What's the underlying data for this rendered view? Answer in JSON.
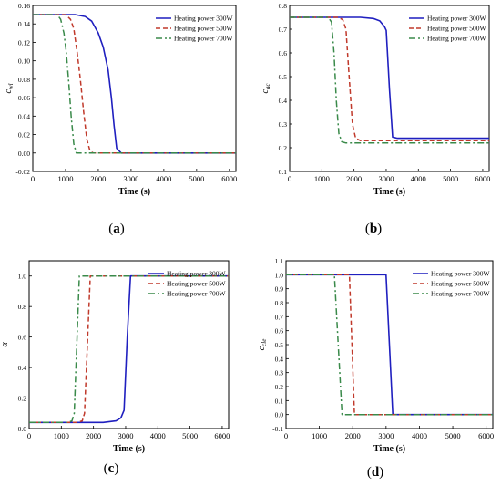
{
  "chart_data": [
    {
      "panel": "(a)",
      "type": "line",
      "xlabel": "Time (s)",
      "ylabel": "c",
      "ylabel_sub": "wl",
      "xlim": [
        0,
        6200
      ],
      "ylim": [
        -0.02,
        0.16
      ],
      "xticks": [
        0,
        1000,
        2000,
        3000,
        4000,
        5000,
        6000
      ],
      "yticks": [
        -0.02,
        0.0,
        0.02,
        0.04,
        0.06,
        0.08,
        0.1,
        0.12,
        0.14,
        0.16
      ],
      "ytick_labels": [
        "-0.02",
        "0.00",
        "0.02",
        "0.04",
        "0.06",
        "0.08",
        "0.10",
        "0.12",
        "0.14",
        "0.16"
      ],
      "legend_position": "top-right",
      "series": [
        {
          "name": "Heating power 300W",
          "color": "#1f1fbf",
          "dash": "solid",
          "points": [
            [
              0,
              0.15
            ],
            [
              1300,
              0.15
            ],
            [
              1600,
              0.148
            ],
            [
              1800,
              0.143
            ],
            [
              2000,
              0.13
            ],
            [
              2150,
              0.115
            ],
            [
              2300,
              0.09
            ],
            [
              2400,
              0.06
            ],
            [
              2480,
              0.03
            ],
            [
              2560,
              0.005
            ],
            [
              2700,
              0.0
            ],
            [
              6200,
              0.0
            ]
          ]
        },
        {
          "name": "Heating power 500W",
          "color": "#c0392b",
          "dash": "dash",
          "points": [
            [
              0,
              0.15
            ],
            [
              1000,
              0.15
            ],
            [
              1150,
              0.145
            ],
            [
              1250,
              0.135
            ],
            [
              1350,
              0.11
            ],
            [
              1450,
              0.08
            ],
            [
              1550,
              0.045
            ],
            [
              1650,
              0.015
            ],
            [
              1750,
              0.002
            ],
            [
              1850,
              0.0
            ],
            [
              6200,
              0.0
            ]
          ]
        },
        {
          "name": "Heating power 700W",
          "color": "#3a8a4a",
          "dash": "dashdot",
          "points": [
            [
              0,
              0.15
            ],
            [
              750,
              0.15
            ],
            [
              850,
              0.145
            ],
            [
              950,
              0.13
            ],
            [
              1020,
              0.11
            ],
            [
              1100,
              0.075
            ],
            [
              1170,
              0.04
            ],
            [
              1250,
              0.01
            ],
            [
              1330,
              0.0
            ],
            [
              6200,
              0.0
            ]
          ]
        }
      ]
    },
    {
      "panel": "(b)",
      "type": "line",
      "xlabel": "Time (s)",
      "ylabel": "c",
      "ylabel_sub": "ac",
      "xlim": [
        0,
        6200
      ],
      "ylim": [
        0.1,
        0.8
      ],
      "xticks": [
        0,
        1000,
        2000,
        3000,
        4000,
        5000,
        6000
      ],
      "yticks": [
        0.1,
        0.2,
        0.3,
        0.4,
        0.5,
        0.6,
        0.7,
        0.8
      ],
      "ytick_labels": [
        "0.1",
        "0.2",
        "0.3",
        "0.4",
        "0.5",
        "0.6",
        "0.7",
        "0.8"
      ],
      "legend_position": "top-right",
      "series": [
        {
          "name": "Heating power 300W",
          "color": "#1f1fbf",
          "dash": "solid",
          "points": [
            [
              0,
              0.75
            ],
            [
              2200,
              0.75
            ],
            [
              2600,
              0.745
            ],
            [
              2800,
              0.735
            ],
            [
              2950,
              0.71
            ],
            [
              3000,
              0.695
            ],
            [
              3100,
              0.45
            ],
            [
              3200,
              0.245
            ],
            [
              3350,
              0.24
            ],
            [
              6200,
              0.24
            ]
          ]
        },
        {
          "name": "Heating power 500W",
          "color": "#c0392b",
          "dash": "dash",
          "points": [
            [
              0,
              0.75
            ],
            [
              1500,
              0.75
            ],
            [
              1650,
              0.74
            ],
            [
              1750,
              0.7
            ],
            [
              1850,
              0.5
            ],
            [
              1950,
              0.3
            ],
            [
              2050,
              0.24
            ],
            [
              2200,
              0.23
            ],
            [
              6200,
              0.23
            ]
          ]
        },
        {
          "name": "Heating power 700W",
          "color": "#3a8a4a",
          "dash": "dashdot",
          "points": [
            [
              0,
              0.75
            ],
            [
              1200,
              0.75
            ],
            [
              1300,
              0.73
            ],
            [
              1380,
              0.6
            ],
            [
              1450,
              0.4
            ],
            [
              1530,
              0.26
            ],
            [
              1620,
              0.225
            ],
            [
              1750,
              0.22
            ],
            [
              6200,
              0.22
            ]
          ]
        }
      ]
    },
    {
      "panel": "(c)",
      "type": "line",
      "xlabel": "Time (s)",
      "ylabel": "α",
      "ylabel_sub": "",
      "xlim": [
        0,
        6200
      ],
      "ylim": [
        0.0,
        1.1
      ],
      "xticks": [
        0,
        1000,
        2000,
        3000,
        4000,
        5000,
        6000
      ],
      "yticks": [
        0.0,
        0.2,
        0.4,
        0.6,
        0.8,
        1.0
      ],
      "ytick_labels": [
        "0.0",
        "0.2",
        "0.4",
        "0.6",
        "0.8",
        "1.0"
      ],
      "legend_position": "top-right",
      "series": [
        {
          "name": "Heating power 300W",
          "color": "#1f1fbf",
          "dash": "solid",
          "points": [
            [
              0,
              0.04
            ],
            [
              2300,
              0.04
            ],
            [
              2700,
              0.05
            ],
            [
              2850,
              0.07
            ],
            [
              2950,
              0.12
            ],
            [
              3050,
              0.6
            ],
            [
              3150,
              1.0
            ],
            [
              6200,
              1.0
            ]
          ]
        },
        {
          "name": "Heating power 500W",
          "color": "#c0392b",
          "dash": "dash",
          "points": [
            [
              0,
              0.04
            ],
            [
              1500,
              0.04
            ],
            [
              1650,
              0.05
            ],
            [
              1720,
              0.1
            ],
            [
              1800,
              0.5
            ],
            [
              1900,
              1.0
            ],
            [
              6200,
              1.0
            ]
          ]
        },
        {
          "name": "Heating power 700W",
          "color": "#3a8a4a",
          "dash": "dashdot",
          "points": [
            [
              0,
              0.04
            ],
            [
              1200,
              0.04
            ],
            [
              1330,
              0.05
            ],
            [
              1400,
              0.1
            ],
            [
              1480,
              0.55
            ],
            [
              1560,
              1.0
            ],
            [
              6200,
              1.0
            ]
          ]
        }
      ]
    },
    {
      "panel": "(d)",
      "type": "line",
      "xlabel": "Time (s)",
      "ylabel": "c",
      "ylabel_sub": "cle",
      "xlim": [
        0,
        6200
      ],
      "ylim": [
        -0.1,
        1.1
      ],
      "xticks": [
        0,
        1000,
        2000,
        3000,
        4000,
        5000,
        6000
      ],
      "yticks": [
        -0.1,
        0.0,
        0.1,
        0.2,
        0.3,
        0.4,
        0.5,
        0.6,
        0.7,
        0.8,
        0.9,
        1.0,
        1.1
      ],
      "ytick_labels": [
        "-0.1",
        "0.0",
        "0.1",
        "0.2",
        "0.3",
        "0.4",
        "0.5",
        "0.6",
        "0.7",
        "0.8",
        "0.9",
        "1.0",
        "1.1"
      ],
      "legend_position": "top-right",
      "series": [
        {
          "name": "Heating power 300W",
          "color": "#1f1fbf",
          "dash": "solid",
          "points": [
            [
              0,
              1.0
            ],
            [
              3000,
              1.0
            ],
            [
              3200,
              0.0
            ],
            [
              6200,
              0.0
            ]
          ]
        },
        {
          "name": "Heating power 500W",
          "color": "#c0392b",
          "dash": "dash",
          "points": [
            [
              0,
              1.0
            ],
            [
              1900,
              1.0
            ],
            [
              2050,
              0.0
            ],
            [
              6200,
              0.0
            ]
          ]
        },
        {
          "name": "Heating power 700W",
          "color": "#3a8a4a",
          "dash": "dashdot",
          "points": [
            [
              0,
              1.0
            ],
            [
              1450,
              1.0
            ],
            [
              1680,
              0.0
            ],
            [
              6200,
              0.0
            ]
          ]
        }
      ]
    }
  ]
}
